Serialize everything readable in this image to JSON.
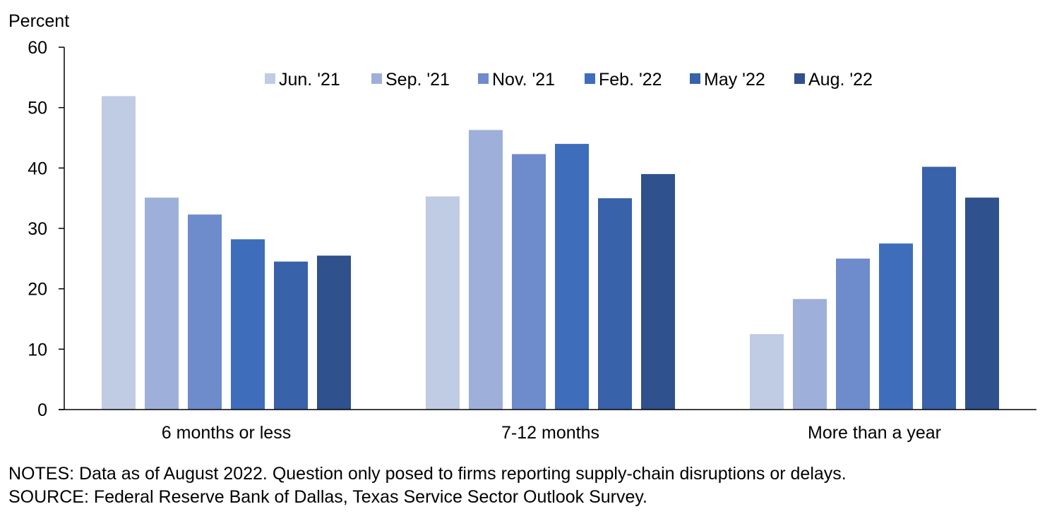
{
  "chart_data": {
    "type": "bar",
    "ylabel": "Percent",
    "ylim": [
      0,
      60
    ],
    "yticks": [
      0,
      10,
      20,
      30,
      40,
      50,
      60
    ],
    "categories": [
      "6 months or less",
      "7-12 months",
      "More than a year"
    ],
    "legend_position": "top",
    "grid": false,
    "series": [
      {
        "name": "Jun. '21",
        "color": "#c0cbe4",
        "values": [
          51.9,
          35.3,
          12.5
        ]
      },
      {
        "name": "Sep. '21",
        "color": "#9eb0d9",
        "values": [
          35.1,
          46.3,
          18.3
        ]
      },
      {
        "name": "Nov. '21",
        "color": "#6e8bcc",
        "values": [
          32.3,
          42.3,
          25.0
        ]
      },
      {
        "name": "Feb. '22",
        "color": "#3e6dbb",
        "values": [
          28.2,
          44.0,
          27.5
        ]
      },
      {
        "name": "May '22",
        "color": "#3862a9",
        "values": [
          24.5,
          35.0,
          40.2
        ]
      },
      {
        "name": "Aug. '22",
        "color": "#2f518d",
        "values": [
          25.5,
          39.0,
          35.1
        ]
      }
    ]
  },
  "notes": "NOTES: Data as of August 2022. Question only posed to firms reporting supply-chain disruptions or delays.",
  "source": "SOURCE: Federal Reserve Bank of Dallas, Texas Service Sector Outlook Survey."
}
